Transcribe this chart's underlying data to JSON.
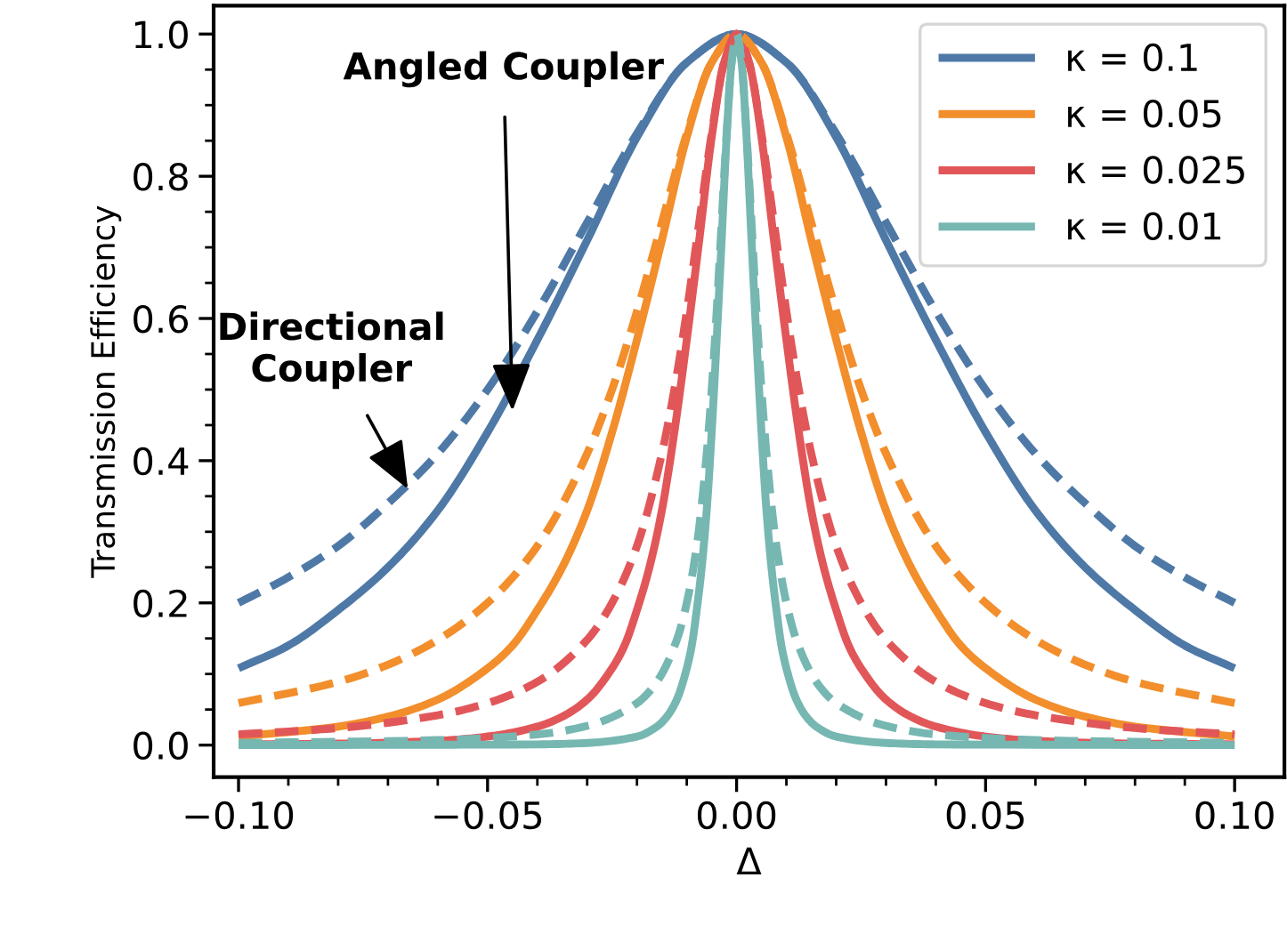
{
  "chart_data": {
    "type": "line",
    "xlabel": "Δ",
    "ylabel": "Transmission Efficiency",
    "xlim": [
      -0.105,
      0.11
    ],
    "ylim": [
      -0.045,
      1.04
    ],
    "xticks": [
      {
        "value": -0.1,
        "label": "−0.10"
      },
      {
        "value": -0.05,
        "label": "−0.05"
      },
      {
        "value": 0,
        "label": "0.00"
      },
      {
        "value": 0.05,
        "label": "0.05"
      },
      {
        "value": 0.1,
        "label": "0.10"
      },
      {
        "value": -0.09,
        "label": null
      },
      {
        "value": -0.08,
        "label": null
      },
      {
        "value": -0.07,
        "label": null
      },
      {
        "value": -0.06,
        "label": null
      },
      {
        "value": -0.04,
        "label": null
      },
      {
        "value": -0.03,
        "label": null
      },
      {
        "value": -0.02,
        "label": null
      },
      {
        "value": -0.01,
        "label": null
      },
      {
        "value": 0.01,
        "label": null
      },
      {
        "value": 0.02,
        "label": null
      },
      {
        "value": 0.03,
        "label": null
      },
      {
        "value": 0.04,
        "label": null
      },
      {
        "value": 0.06,
        "label": null
      },
      {
        "value": 0.07,
        "label": null
      },
      {
        "value": 0.08,
        "label": null
      },
      {
        "value": 0.09,
        "label": null
      }
    ],
    "yticks": [
      {
        "value": 0,
        "label": "0.0"
      },
      {
        "value": 0.2,
        "label": "0.2"
      },
      {
        "value": 0.4,
        "label": "0.4"
      },
      {
        "value": 0.6,
        "label": "0.6"
      },
      {
        "value": 0.8,
        "label": "0.8"
      },
      {
        "value": 1.0,
        "label": "1.0"
      },
      {
        "value": 0.05,
        "label": null
      },
      {
        "value": 0.1,
        "label": null
      },
      {
        "value": 0.15,
        "label": null
      },
      {
        "value": 0.25,
        "label": null
      },
      {
        "value": 0.3,
        "label": null
      },
      {
        "value": 0.35,
        "label": null
      },
      {
        "value": 0.45,
        "label": null
      },
      {
        "value": 0.5,
        "label": null
      },
      {
        "value": 0.55,
        "label": null
      },
      {
        "value": 0.65,
        "label": null
      },
      {
        "value": 0.7,
        "label": null
      },
      {
        "value": 0.75,
        "label": null
      },
      {
        "value": 0.85,
        "label": null
      },
      {
        "value": 0.9,
        "label": null
      },
      {
        "value": 0.95,
        "label": null
      }
    ],
    "grid": false,
    "legend": "top right",
    "marker": "none",
    "series": [
      {
        "name": "κ = 0.1",
        "color": "#4e79a7",
        "line_style": "solid",
        "x": [
          -0.1,
          -0.09,
          -0.08,
          -0.07,
          -0.06,
          -0.05,
          -0.04,
          -0.03,
          -0.02,
          -0.01,
          0,
          0.01,
          0.02,
          0.03,
          0.04,
          0.05,
          0.06,
          0.07,
          0.08,
          0.09,
          0.1
        ],
        "values": [
          0.108,
          0.14,
          0.19,
          0.25,
          0.33,
          0.44,
          0.57,
          0.71,
          0.855,
          0.96,
          1,
          0.96,
          0.855,
          0.71,
          0.57,
          0.44,
          0.33,
          0.25,
          0.19,
          0.14,
          0.108
        ]
      },
      {
        "name": "κ = 0.05",
        "color": "#f28e2b",
        "line_style": "solid",
        "x": [
          -0.1,
          -0.08,
          -0.07,
          -0.06,
          -0.05,
          -0.045,
          -0.04,
          -0.035,
          -0.03,
          -0.025,
          -0.02,
          -0.015,
          -0.01,
          -0.005,
          0,
          0.005,
          0.01,
          0.015,
          0.02,
          0.025,
          0.03,
          0.035,
          0.04,
          0.045,
          0.05,
          0.06,
          0.07,
          0.08,
          0.1
        ],
        "values": [
          0.012,
          0.026,
          0.04,
          0.064,
          0.108,
          0.14,
          0.19,
          0.25,
          0.33,
          0.44,
          0.57,
          0.71,
          0.855,
          0.96,
          1,
          0.96,
          0.855,
          0.71,
          0.57,
          0.44,
          0.33,
          0.25,
          0.19,
          0.14,
          0.108,
          0.064,
          0.04,
          0.026,
          0.012
        ]
      },
      {
        "name": "κ = 0.025",
        "color": "#e15759",
        "line_style": "solid",
        "x": [
          -0.1,
          -0.08,
          -0.06,
          -0.05,
          -0.04,
          -0.035,
          -0.03,
          -0.025,
          -0.0225,
          -0.02,
          -0.0175,
          -0.015,
          -0.0125,
          -0.01,
          -0.0075,
          -0.005,
          -0.0025,
          0,
          0.0025,
          0.005,
          0.0075,
          0.01,
          0.0125,
          0.015,
          0.0175,
          0.02,
          0.0225,
          0.025,
          0.03,
          0.035,
          0.04,
          0.05,
          0.06,
          0.08,
          0.1
        ],
        "values": [
          0.001,
          0.002,
          0.006,
          0.012,
          0.026,
          0.04,
          0.064,
          0.108,
          0.14,
          0.19,
          0.25,
          0.33,
          0.44,
          0.57,
          0.71,
          0.855,
          0.96,
          1,
          0.96,
          0.855,
          0.71,
          0.57,
          0.44,
          0.33,
          0.25,
          0.19,
          0.14,
          0.108,
          0.064,
          0.04,
          0.026,
          0.012,
          0.006,
          0.002,
          0.001
        ]
      },
      {
        "name": "κ = 0.01",
        "color": "#76b7b2",
        "line_style": "solid",
        "x": [
          -0.1,
          -0.04,
          -0.03,
          -0.02,
          -0.016,
          -0.014,
          -0.012,
          -0.01,
          -0.009,
          -0.008,
          -0.007,
          -0.006,
          -0.005,
          -0.004,
          -0.003,
          -0.002,
          -0.001,
          0,
          0.001,
          0.002,
          0.003,
          0.004,
          0.005,
          0.006,
          0.007,
          0.008,
          0.009,
          0.01,
          0.012,
          0.014,
          0.016,
          0.02,
          0.03,
          0.04,
          0.1
        ],
        "values": [
          0,
          0.001,
          0.003,
          0.012,
          0.026,
          0.04,
          0.064,
          0.108,
          0.14,
          0.19,
          0.25,
          0.33,
          0.44,
          0.57,
          0.71,
          0.855,
          0.96,
          1,
          0.96,
          0.855,
          0.71,
          0.57,
          0.44,
          0.33,
          0.25,
          0.19,
          0.14,
          0.108,
          0.064,
          0.04,
          0.026,
          0.012,
          0.003,
          0.001,
          0
        ]
      },
      {
        "color": "#4e79a7",
        "line_style": "dashed",
        "x": [
          -0.1,
          -0.09,
          -0.08,
          -0.07,
          -0.06,
          -0.05,
          -0.04,
          -0.03,
          -0.02,
          -0.01,
          0,
          0.01,
          0.02,
          0.03,
          0.04,
          0.05,
          0.06,
          0.07,
          0.08,
          0.09,
          0.1
        ],
        "values": [
          0.2,
          0.236,
          0.28,
          0.34,
          0.41,
          0.5,
          0.61,
          0.735,
          0.86,
          0.96,
          1,
          0.96,
          0.86,
          0.735,
          0.61,
          0.5,
          0.41,
          0.34,
          0.28,
          0.236,
          0.2
        ]
      },
      {
        "color": "#f28e2b",
        "line_style": "dashed",
        "x": [
          -0.1,
          -0.08,
          -0.07,
          -0.06,
          -0.05,
          -0.04,
          -0.03,
          -0.025,
          -0.02,
          -0.015,
          -0.01,
          -0.005,
          0,
          0.005,
          0.01,
          0.015,
          0.02,
          0.025,
          0.03,
          0.04,
          0.05,
          0.06,
          0.07,
          0.08,
          0.1
        ],
        "values": [
          0.059,
          0.089,
          0.113,
          0.148,
          0.2,
          0.28,
          0.41,
          0.5,
          0.61,
          0.735,
          0.86,
          0.96,
          1,
          0.96,
          0.86,
          0.735,
          0.61,
          0.5,
          0.41,
          0.28,
          0.2,
          0.148,
          0.113,
          0.089,
          0.059
        ]
      },
      {
        "color": "#e15759",
        "line_style": "dashed",
        "x": [
          -0.1,
          -0.08,
          -0.06,
          -0.05,
          -0.04,
          -0.03,
          -0.025,
          -0.02,
          -0.015,
          -0.0125,
          -0.01,
          -0.0075,
          -0.005,
          -0.0025,
          0,
          0.0025,
          0.005,
          0.0075,
          0.01,
          0.0125,
          0.015,
          0.02,
          0.025,
          0.03,
          0.04,
          0.05,
          0.06,
          0.08,
          0.1
        ],
        "values": [
          0.015,
          0.024,
          0.042,
          0.059,
          0.089,
          0.148,
          0.2,
          0.28,
          0.41,
          0.5,
          0.61,
          0.735,
          0.86,
          0.96,
          1,
          0.96,
          0.86,
          0.735,
          0.61,
          0.5,
          0.41,
          0.28,
          0.2,
          0.148,
          0.089,
          0.059,
          0.042,
          0.024,
          0.015
        ]
      },
      {
        "color": "#76b7b2",
        "line_style": "dashed",
        "x": [
          -0.1,
          -0.06,
          -0.04,
          -0.03,
          -0.02,
          -0.016,
          -0.012,
          -0.01,
          -0.008,
          -0.006,
          -0.005,
          -0.004,
          -0.003,
          -0.002,
          -0.001,
          0,
          0.001,
          0.002,
          0.003,
          0.004,
          0.005,
          0.006,
          0.008,
          0.01,
          0.012,
          0.016,
          0.02,
          0.03,
          0.04,
          0.06,
          0.1
        ],
        "values": [
          0.003,
          0.007,
          0.015,
          0.027,
          0.059,
          0.089,
          0.148,
          0.2,
          0.28,
          0.41,
          0.5,
          0.61,
          0.735,
          0.86,
          0.96,
          1,
          0.96,
          0.86,
          0.735,
          0.61,
          0.5,
          0.41,
          0.28,
          0.2,
          0.148,
          0.089,
          0.059,
          0.027,
          0.015,
          0.007,
          0.003
        ]
      }
    ],
    "annotations": [
      {
        "text": "Angled Coupler",
        "x": -0.045,
        "y": 0.47
      },
      {
        "text": "Directional\nCoupler",
        "x": -0.066,
        "y": 0.36
      }
    ]
  }
}
